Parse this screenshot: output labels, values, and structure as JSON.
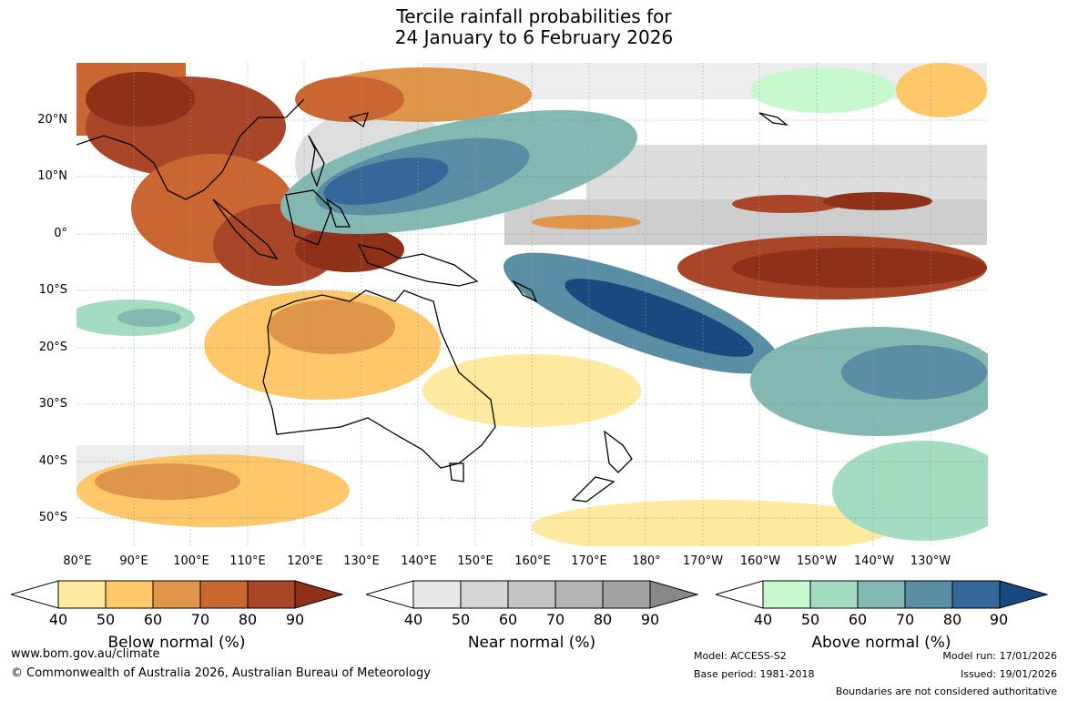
{
  "title": {
    "line1": "Tercile rainfall probabilities for",
    "line2": "24 January to 6 February 2026"
  },
  "map": {
    "lat_labels": [
      "20°N",
      "10°N",
      "0°",
      "10°S",
      "20°S",
      "30°S",
      "40°S",
      "50°S"
    ],
    "lon_labels": [
      "80°E",
      "90°E",
      "100°E",
      "110°E",
      "120°E",
      "130°E",
      "140°E",
      "150°E",
      "160°E",
      "170°E",
      "180°",
      "170°W",
      "160°W",
      "150°W",
      "140°W",
      "130°W"
    ]
  },
  "legends": [
    {
      "title": "Below normal (%)",
      "ticks": [
        "40",
        "50",
        "60",
        "70",
        "80",
        "90"
      ],
      "colors": [
        "#ffffff",
        "#ffeaa0",
        "#fec86a",
        "#e0964a",
        "#ca6632",
        "#a94628",
        "#8f3018"
      ]
    },
    {
      "title": "Near normal (%)",
      "ticks": [
        "40",
        "50",
        "60",
        "70",
        "80",
        "90"
      ],
      "colors": [
        "#ffffff",
        "#e8e8e8",
        "#d6d6d6",
        "#c4c4c4",
        "#b4b4b4",
        "#a2a2a2",
        "#888888"
      ]
    },
    {
      "title": "Above normal (%)",
      "ticks": [
        "40",
        "50",
        "60",
        "70",
        "80",
        "90"
      ],
      "colors": [
        "#ffffff",
        "#c8f8ce",
        "#a4dcc2",
        "#84b8b2",
        "#5a8ea4",
        "#36679a",
        "#184a80"
      ]
    }
  ],
  "footer": {
    "url": "www.bom.gov.au/climate",
    "copyright": "© Commonwealth of Australia 2026, Australian Bureau of Meteorology",
    "model": "Model: ACCESS-S2",
    "base_period": "Base period: 1981-2018",
    "model_run": "Model run: 17/01/2026",
    "issued": "Issued: 19/01/2026",
    "disclaimer": "Boundaries are not considered authoritative"
  }
}
